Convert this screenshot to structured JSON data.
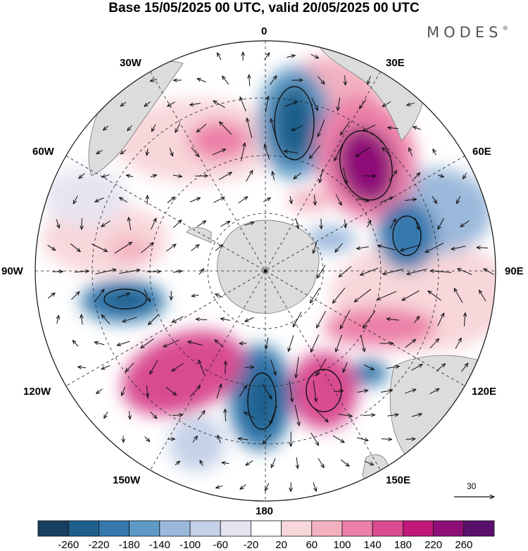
{
  "title": "Base 15/05/2025 00 UTC, valid 20/05/2025 00 UTC",
  "brand": "MODES",
  "brand_mark": "®",
  "longitude_labels": {
    "lon_0": "0",
    "lon_30e": "30E",
    "lon_60e": "60E",
    "lon_90e": "90E",
    "lon_120e": "120E",
    "lon_150e": "150E",
    "lon_180": "180",
    "lon_150w": "150W",
    "lon_120w": "120W",
    "lon_90w": "90W",
    "lon_60w": "60W",
    "lon_30w": "30W"
  },
  "wind_reference": {
    "label": "30"
  },
  "colorbar": {
    "colors": [
      "#173f5f",
      "#1f5f8b",
      "#3478ad",
      "#5d9ac6",
      "#9bb9db",
      "#c5d1e8",
      "#e6e4f1",
      "#ffffff",
      "#f8d7da",
      "#f3b1c0",
      "#ec80a8",
      "#d94c91",
      "#c0177a",
      "#8e0f78",
      "#5a106b"
    ],
    "labels": [
      "-260",
      "-220",
      "-180",
      "-140",
      "-100",
      "-60",
      "-20",
      "20",
      "60",
      "100",
      "140",
      "180",
      "220",
      "260"
    ]
  },
  "anomalies": [
    {
      "name": "cyclone-0deg",
      "color": "#1f5f8b"
    },
    {
      "name": "anticyclone-30e",
      "color": "#8e0f78"
    },
    {
      "name": "cyclone-70e",
      "color": "#3478ad"
    },
    {
      "name": "anticyclone-110e",
      "color": "#d94c91"
    },
    {
      "name": "anticyclone-150e",
      "color": "#c0177a"
    },
    {
      "name": "cyclone-180",
      "color": "#1f5f8b"
    },
    {
      "name": "anticyclone-140w",
      "color": "#c0177a"
    },
    {
      "name": "cyclone-100w",
      "color": "#1f5f8b"
    },
    {
      "name": "anticyclone-40w",
      "color": "#d94c91"
    }
  ]
}
